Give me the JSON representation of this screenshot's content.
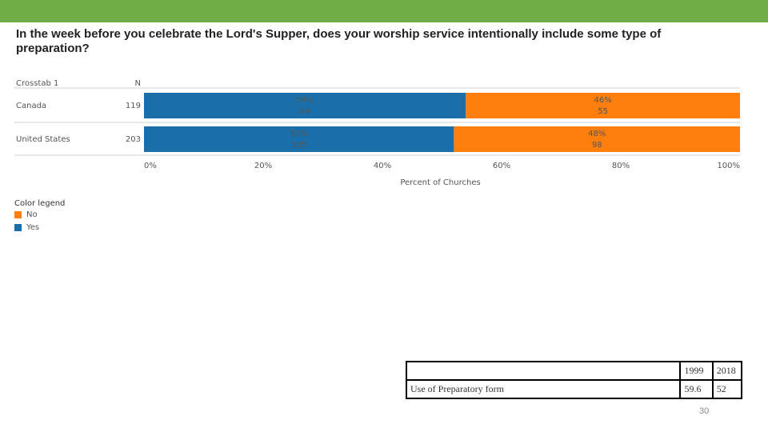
{
  "question": "In the week before you celebrate the Lord's Supper, does your worship service intentionally include some type of preparation?",
  "chart_data": {
    "type": "bar",
    "orientation": "horizontal",
    "stacked": true,
    "header_label": "Crosstab 1",
    "n_header": "N",
    "categories": [
      "Canada",
      "United States"
    ],
    "n_values": [
      119,
      203
    ],
    "series": [
      {
        "name": "Yes",
        "color": "#1a6fab",
        "values": [
          54,
          52
        ],
        "counts": [
          64,
          105
        ]
      },
      {
        "name": "No",
        "color": "#ff7f0e",
        "values": [
          46,
          48
        ],
        "counts": [
          55,
          98
        ]
      }
    ],
    "xlim": [
      0,
      100
    ],
    "xticks": [
      "0%",
      "20%",
      "40%",
      "60%",
      "80%",
      "100%"
    ],
    "xlabel": "Percent of Churches",
    "legend_title": "Color legend",
    "legend_items": [
      "No",
      "Yes"
    ],
    "legend_colors": [
      "#ff7f0e",
      "#1a6fab"
    ]
  },
  "prep_table": {
    "headers": [
      "1999",
      "2018"
    ],
    "row_label": "Use of Preparatory form",
    "values": [
      "59.6",
      "52"
    ]
  },
  "page_number": "30"
}
